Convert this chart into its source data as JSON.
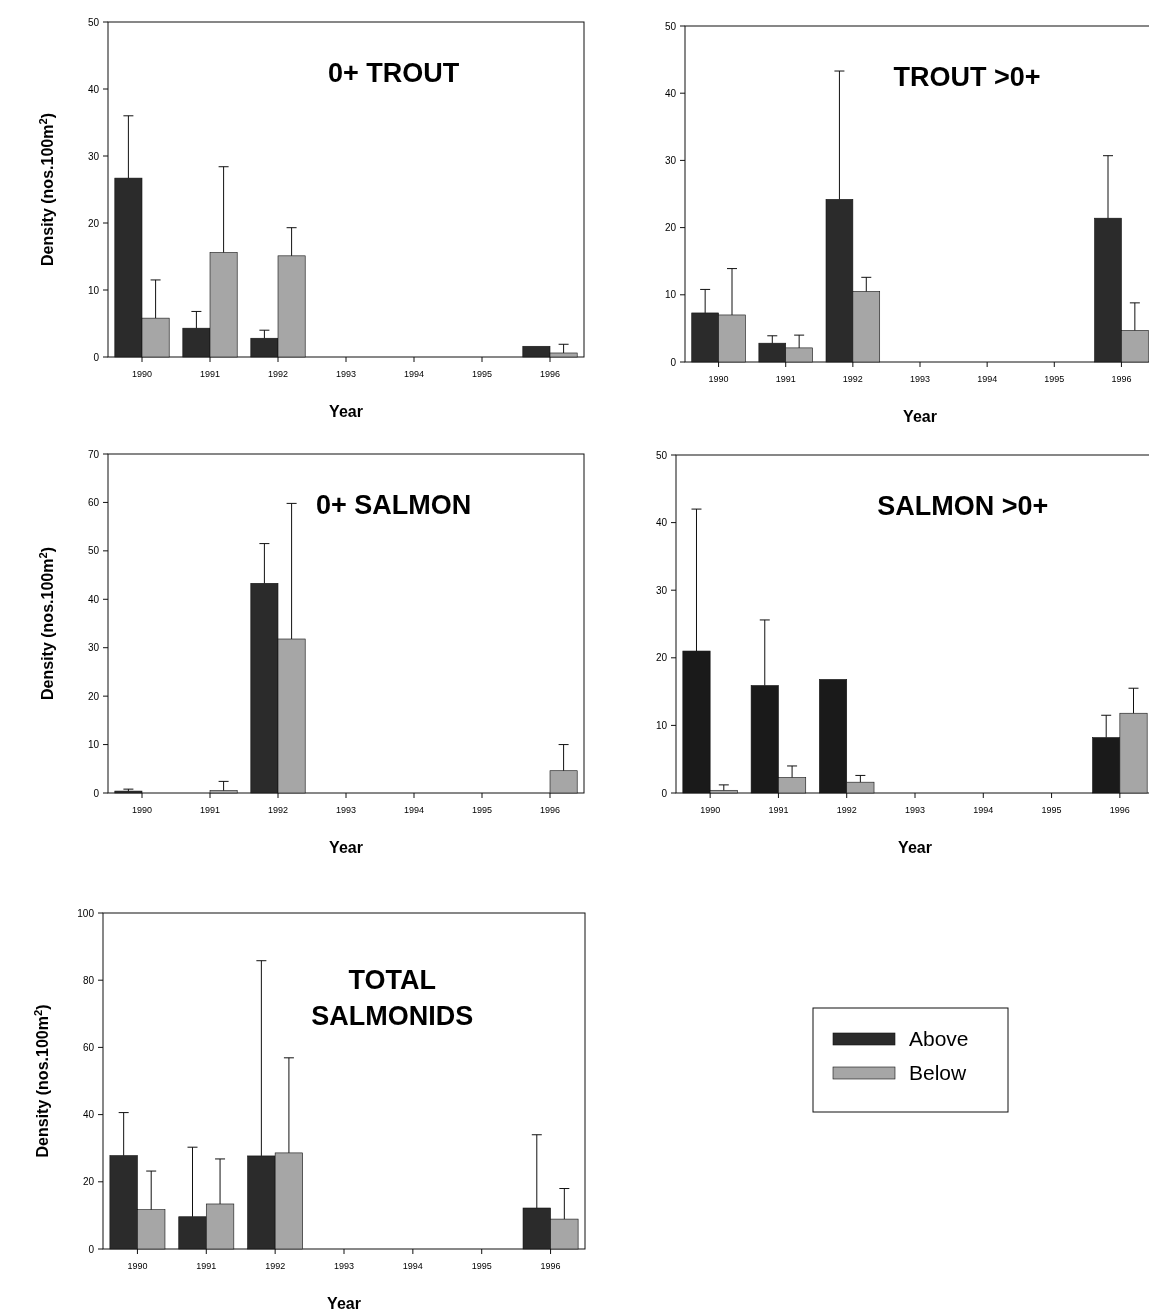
{
  "chart_data": [
    {
      "type": "bar",
      "title": "0+ TROUT",
      "xlabel": "Year",
      "ylabel": "Density (nos.100m$^{2}$)",
      "categories": [
        "1990",
        "1991",
        "1992",
        "1993",
        "1994",
        "1995",
        "1996"
      ],
      "ylim": [
        0,
        50
      ],
      "yticks": [
        0,
        10,
        20,
        30,
        40,
        50
      ],
      "series": [
        {
          "color": "#2b2b2b",
          "values": [
            26.7,
            4.3,
            2.8,
            null,
            null,
            null,
            1.6
          ],
          "errors": [
            [
              26.7,
              36
            ],
            [
              4.3,
              6.8
            ],
            [
              2.8,
              4
            ],
            null,
            null,
            null,
            null
          ]
        },
        {
          "color": "#a6a6a6",
          "values": [
            5.8,
            15.6,
            15.1,
            null,
            null,
            null,
            0.6
          ],
          "errors": [
            [
              5.8,
              11.5
            ],
            [
              15.6,
              28.4
            ],
            [
              15.1,
              19.3
            ],
            null,
            null,
            null,
            [
              0.6,
              1.9
            ]
          ]
        }
      ]
    },
    {
      "type": "bar",
      "title": "TROUT >0+",
      "xlabel": "Year",
      "categories": [
        "1990",
        "1991",
        "1992",
        "1993",
        "1994",
        "1995",
        "1996"
      ],
      "ylim": [
        0,
        50
      ],
      "yticks": [
        0,
        10,
        20,
        30,
        40,
        50
      ],
      "series": [
        {
          "color": "#2b2b2b",
          "values": [
            7.3,
            2.8,
            24.2,
            null,
            null,
            null,
            21.4
          ],
          "errors": [
            [
              7.3,
              10.8
            ],
            [
              2.8,
              3.9
            ],
            [
              24.2,
              43.3
            ],
            null,
            null,
            null,
            [
              21.4,
              30.7
            ]
          ]
        },
        {
          "color": "#a6a6a6",
          "values": [
            7,
            2.1,
            10.5,
            null,
            null,
            null,
            4.7
          ],
          "errors": [
            [
              7,
              13.9
            ],
            [
              2.1,
              4
            ],
            [
              10.5,
              12.6
            ],
            null,
            null,
            null,
            [
              4.7,
              8.8
            ]
          ]
        }
      ]
    },
    {
      "type": "bar",
      "title": "0+ SALMON",
      "xlabel": "Year",
      "ylabel": "Density (nos.100m$^{2}$)",
      "categories": [
        "1990",
        "1991",
        "1992",
        "1993",
        "1994",
        "1995",
        "1996"
      ],
      "ylim": [
        0,
        70
      ],
      "yticks": [
        0,
        10,
        20,
        30,
        40,
        50,
        60,
        70
      ],
      "series": [
        {
          "color": "#2b2b2b",
          "values": [
            0.4,
            null,
            43.3,
            null,
            null,
            null,
            null
          ],
          "errors": [
            [
              0.4,
              0.8
            ],
            null,
            [
              43.3,
              51.5
            ],
            null,
            null,
            null,
            null
          ]
        },
        {
          "color": "#a6a6a6",
          "values": [
            null,
            0.5,
            31.8,
            null,
            null,
            null,
            4.6
          ],
          "errors": [
            null,
            [
              0.5,
              2.4
            ],
            [
              31.8,
              59.8
            ],
            null,
            null,
            null,
            [
              4.6,
              10
            ]
          ]
        }
      ]
    },
    {
      "type": "bar",
      "title": "SALMON >0+",
      "xlabel": "Year",
      "categories": [
        "1990",
        "1991",
        "1992",
        "1993",
        "1994",
        "1995",
        "1996"
      ],
      "ylim": [
        0,
        50
      ],
      "yticks": [
        0,
        10,
        20,
        30,
        40,
        50
      ],
      "series": [
        {
          "color": "#1a1a1a",
          "values": [
            21,
            15.9,
            16.8,
            null,
            null,
            null,
            8.2
          ],
          "errors": [
            [
              21,
              42
            ],
            [
              15.9,
              25.6
            ],
            null,
            null,
            null,
            null,
            [
              8.2,
              11.5
            ]
          ]
        },
        {
          "color": "#a6a6a6",
          "values": [
            0.4,
            2.3,
            1.6,
            null,
            null,
            null,
            11.8
          ],
          "errors": [
            [
              0.4,
              1.2
            ],
            [
              2.3,
              4
            ],
            [
              1.6,
              2.6
            ],
            null,
            null,
            null,
            [
              11.8,
              15.5
            ]
          ]
        }
      ]
    },
    {
      "type": "bar",
      "title": "TOTAL SALMONIDS",
      "xlabel": "Year",
      "ylabel": "Density (nos.100m$^{2}$)",
      "categories": [
        "1990",
        "1991",
        "1992",
        "1993",
        "1994",
        "1995",
        "1996"
      ],
      "ylim": [
        0,
        100
      ],
      "yticks": [
        0,
        20,
        40,
        60,
        80,
        100
      ],
      "legend": "right",
      "series": [
        {
          "name": "Above",
          "color": "#2b2b2b",
          "values": [
            27.8,
            9.6,
            27.7,
            null,
            null,
            null,
            12.2
          ],
          "errors": [
            [
              27.8,
              40.6
            ],
            [
              9.6,
              30.3
            ],
            [
              27.7,
              85.8
            ],
            null,
            null,
            null,
            [
              12.2,
              34
            ]
          ]
        },
        {
          "name": "Below",
          "color": "#a6a6a6",
          "values": [
            11.7,
            13.4,
            28.6,
            null,
            null,
            null,
            8.9
          ],
          "errors": [
            [
              11.7,
              23.2
            ],
            [
              13.4,
              26.8
            ],
            [
              28.6,
              56.9
            ],
            null,
            null,
            null,
            [
              8.9,
              18
            ]
          ]
        }
      ]
    }
  ]
}
